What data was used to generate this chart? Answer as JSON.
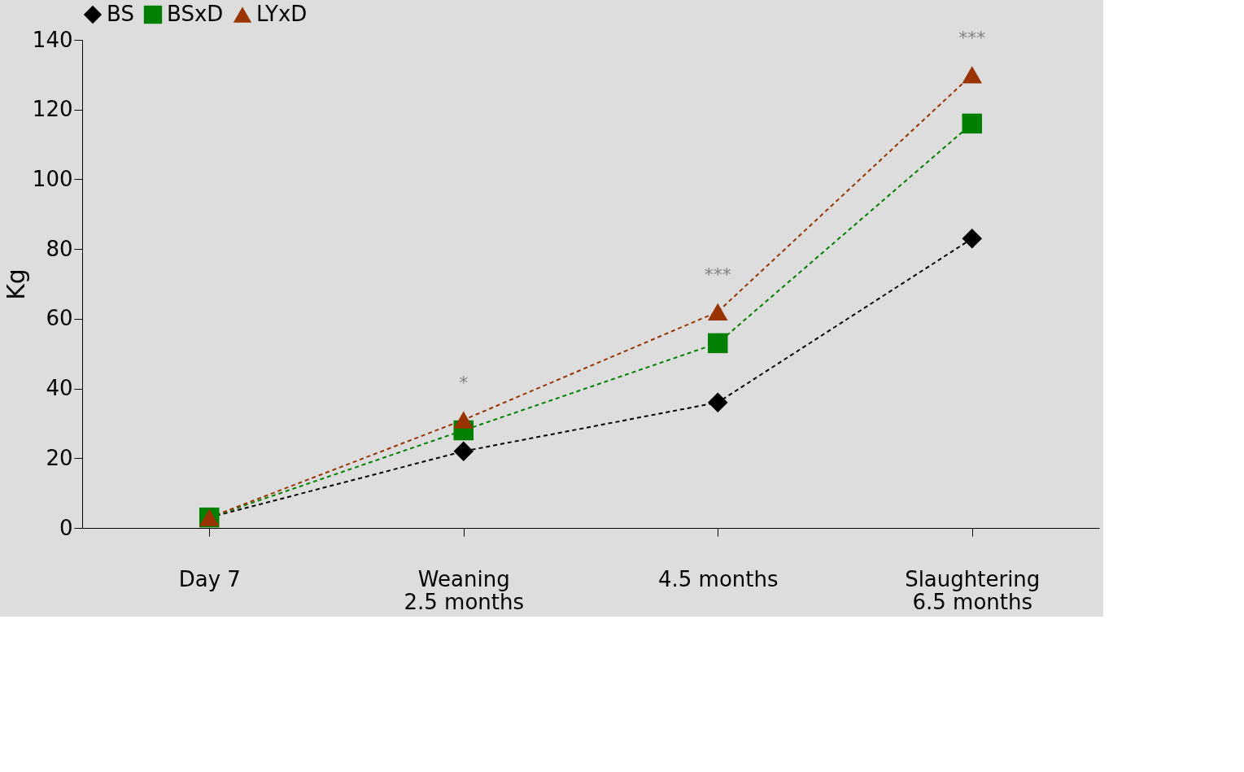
{
  "chart_data": {
    "type": "line",
    "ylabel": "Kg",
    "categories": [
      "Day 7",
      "Weaning\n2.5 months",
      "4.5 months",
      "Slaughtering\n6.5 months"
    ],
    "series": [
      {
        "name": "BS",
        "color": "#000000",
        "marker": "diamond",
        "values": [
          3,
          22,
          36,
          83
        ]
      },
      {
        "name": "BSxD",
        "color": "#008000",
        "marker": "square",
        "values": [
          3,
          28,
          53,
          116
        ]
      },
      {
        "name": "LYxD",
        "color": "#993300",
        "marker": "triangle",
        "values": [
          3,
          31,
          62,
          130
        ]
      }
    ],
    "ylim": [
      0,
      140
    ],
    "yticks": [
      0,
      20,
      40,
      60,
      80,
      100,
      120,
      140
    ],
    "line_style": "dashed",
    "legend": "top",
    "annotations": [
      "*",
      "***",
      "***"
    ]
  }
}
